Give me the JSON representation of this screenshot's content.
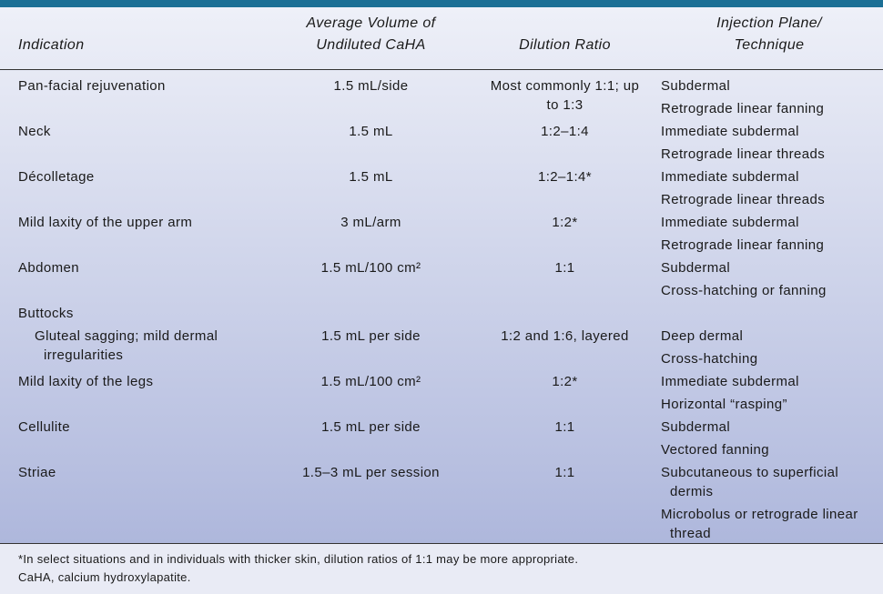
{
  "header": {
    "indication": "Indication",
    "volume": [
      "Average Volume of",
      "Undiluted CaHA"
    ],
    "dilution": "Dilution Ratio",
    "technique": [
      "Injection Plane/",
      "Technique"
    ]
  },
  "rows": [
    {
      "indication": "Pan-facial rejuvenation",
      "volume": "1.5 mL/side",
      "dilution": "Most commonly 1:1; up to 1:3",
      "technique": [
        "Subdermal",
        "Retrograde linear fanning"
      ]
    },
    {
      "indication": "Neck",
      "volume": "1.5 mL",
      "dilution": "1:2–1:4",
      "technique": [
        "Immediate subdermal",
        "Retrograde linear threads"
      ]
    },
    {
      "indication": "Décolletage",
      "volume": "1.5 mL",
      "dilution": "1:2–1:4*",
      "technique": [
        "Immediate subdermal",
        "Retrograde linear threads"
      ]
    },
    {
      "indication": "Mild laxity of the upper arm",
      "volume": "3 mL/arm",
      "dilution": "1:2*",
      "technique": [
        "Immediate subdermal",
        "Retrograde linear fanning"
      ]
    },
    {
      "indication": "Abdomen",
      "volume": "1.5 mL/100 cm²",
      "dilution": "1:1",
      "technique": [
        "Subdermal",
        "Cross-hatching or fanning"
      ]
    },
    {
      "indication": "Buttocks"
    },
    {
      "subindication": "Gluteal sagging; mild dermal irregularities",
      "volume": "1.5 mL per side",
      "dilution": "1:2 and 1:6, layered",
      "technique": [
        "Deep dermal",
        "Cross-hatching"
      ]
    },
    {
      "indication": "Mild laxity of the legs",
      "volume": "1.5 mL/100 cm²",
      "dilution": "1:2*",
      "technique": [
        "Immediate subdermal",
        "Horizontal “rasping”"
      ]
    },
    {
      "indication": "Cellulite",
      "volume": "1.5 mL per side",
      "dilution": "1:1",
      "technique": [
        "Subdermal",
        "Vectored fanning"
      ]
    },
    {
      "indication": "Striae",
      "volume": "1.5–3 mL per session",
      "dilution": "1:1",
      "technique": [
        "Subcutaneous to superficial dermis",
        "Microbolus or retrograde linear thread"
      ]
    }
  ],
  "footnotes": [
    "*In select situations and in individuals with thicker skin, dilution ratios of 1:1 may be more appropriate.",
    "CaHA, calcium hydroxylapatite."
  ]
}
